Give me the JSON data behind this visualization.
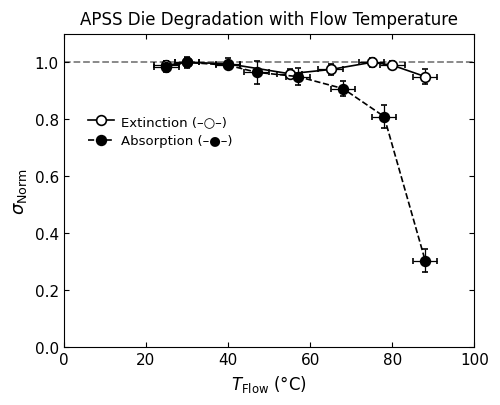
{
  "title": "APSS Die Degradation with Flow Temperature",
  "xlim": [
    0,
    100
  ],
  "ylim": [
    0.0,
    1.1
  ],
  "yticks": [
    0.0,
    0.2,
    0.4,
    0.6,
    0.8,
    1.0
  ],
  "xticks": [
    0,
    20,
    40,
    60,
    80,
    100
  ],
  "ref_line_y": 1.0,
  "extinction": {
    "x": [
      25,
      30,
      40,
      55,
      65,
      75,
      80,
      88
    ],
    "y": [
      0.99,
      1.0,
      0.995,
      0.96,
      0.975,
      1.0,
      0.99,
      0.95
    ],
    "yerr": [
      0.015,
      0.015,
      0.02,
      0.015,
      0.02,
      0.015,
      0.015,
      0.025
    ],
    "xerr": [
      3,
      3,
      3,
      3,
      3,
      3,
      3,
      3
    ],
    "color": "black",
    "linestyle": "-",
    "markersize": 7
  },
  "absorption": {
    "x": [
      25,
      30,
      40,
      47,
      57,
      68,
      78,
      88
    ],
    "y": [
      0.985,
      1.0,
      0.99,
      0.965,
      0.95,
      0.908,
      0.81,
      0.305
    ],
    "yerr": [
      0.02,
      0.02,
      0.015,
      0.04,
      0.03,
      0.025,
      0.04,
      0.04
    ],
    "xerr": [
      3,
      3,
      3,
      3,
      3,
      3,
      3,
      3
    ],
    "color": "black",
    "linestyle": "--",
    "markersize": 7
  },
  "background_color": "white",
  "legend_fontsize": 9.5,
  "title_fontsize": 12
}
